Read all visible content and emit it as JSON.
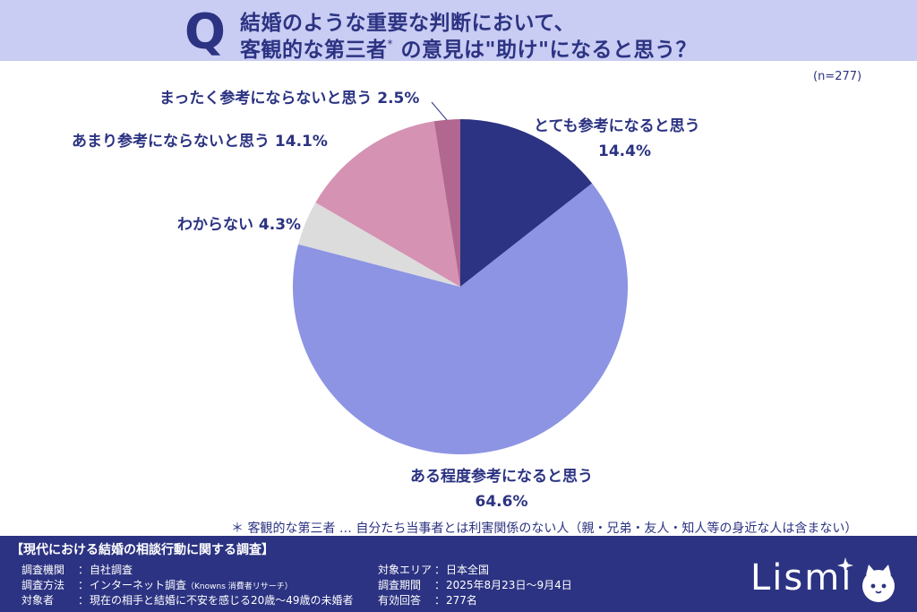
{
  "header": {
    "q_letter": "Q",
    "line1": "結婚のような重要な判断において、",
    "line2_main": "客観的な第三者",
    "line2_mark": "*",
    "line2_rest": " の意見は\"助け\"になると思う？"
  },
  "chart_data": {
    "type": "pie",
    "title": "結婚のような重要な判断において、客観的な第三者* の意見は\"助け\"になると思う？",
    "sample_size": "(n=277)",
    "start": "12 o'clock, clockwise",
    "slices": [
      {
        "label": "とても参考になると思う",
        "value": 14.4,
        "display": "14.4%",
        "color": "#2c3382"
      },
      {
        "label": "ある程度参考になると思う",
        "value": 64.6,
        "display": "64.6%",
        "color": "#8c94e3"
      },
      {
        "label": "わからない",
        "value": 4.3,
        "display": "4.3%",
        "color": "#dcdcdc"
      },
      {
        "label": "あまり参考にならないと思う",
        "value": 14.1,
        "display": "14.1%",
        "color": "#d592b2"
      },
      {
        "label": "まったく参考にならないと思う",
        "value": 2.5,
        "display": "2.5%",
        "color": "#b1678f"
      }
    ]
  },
  "footnote": "＊ 客観的な第三者 … 自分たち当事者とは利害関係のない人（親・兄弟・友人・知人等の身近な人は含まない）",
  "survey": {
    "title": "【現代における結婚の相談行動に関する調査】",
    "separator": "：",
    "rows_left": [
      {
        "key": "調査機関",
        "value": "自社調査"
      },
      {
        "key": "調査方法",
        "value": "インターネット調査",
        "note": "（Knowns 消費者リサーチ）"
      },
      {
        "key": "対象者",
        "value": "現在の相手と結婚に不安を感じる20歳～49歳の未婚者"
      }
    ],
    "rows_right": [
      {
        "key": "対象エリア",
        "value": "日本全国"
      },
      {
        "key": "調査期間",
        "value": "2025年8月23日～9月4日"
      },
      {
        "key": "有効回答",
        "value": "277名"
      }
    ]
  },
  "logo": {
    "text": "Lismi"
  }
}
